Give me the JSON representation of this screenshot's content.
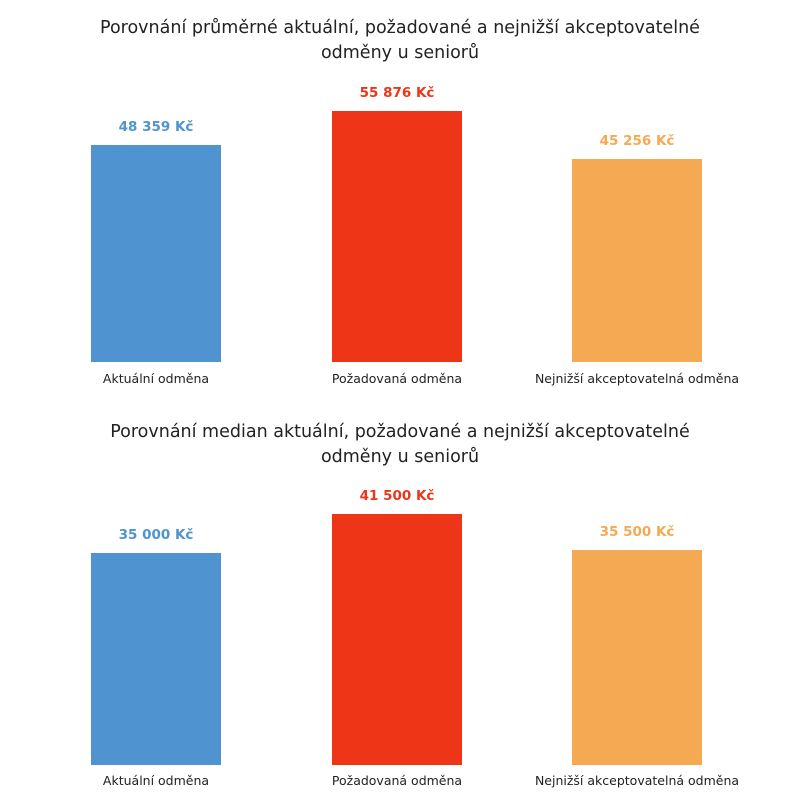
{
  "colors": {
    "aktualni": "#4f94d0",
    "pozadovana": "#ee3518",
    "nejnizsi": "#f5a953"
  },
  "chart_data": [
    {
      "type": "bar",
      "title": "Porovnání průměrné aktuální, požadované a nejnižší akceptovatelné odměny u seniorů",
      "title_lines": [
        "Porovnání průměrné aktuální, požadované a nejnižší akceptovatelné",
        "odměny u seniorů"
      ],
      "categories": [
        "Aktuální odměna",
        "Požadovaná odměna",
        "Nejnižší akceptovatelná odměna"
      ],
      "values": [
        48359,
        55876,
        45256
      ],
      "data_labels": [
        "48 359 Kč",
        "55 876 Kč",
        "45 256 Kč"
      ],
      "colors": [
        "#4f94d0",
        "#ee3518",
        "#f5a953"
      ],
      "xlabel": "",
      "ylabel": "",
      "ylim": [
        0,
        55876
      ],
      "grid": false,
      "legend": "none"
    },
    {
      "type": "bar",
      "title": "Porovnání median aktuální, požadované a nejnižší akceptovatelné odměny u seniorů",
      "title_lines": [
        "Porovnání median aktuální, požadované a nejnižší akceptovatelné",
        "odměny u seniorů"
      ],
      "categories": [
        "Aktuální odměna",
        "Požadovaná odměna",
        "Nejnižší akceptovatelná odměna"
      ],
      "values": [
        35000,
        41500,
        35500
      ],
      "data_labels": [
        "35 000 Kč",
        "41 500 Kč",
        "35 500 Kč"
      ],
      "colors": [
        "#4f94d0",
        "#ee3518",
        "#f5a953"
      ],
      "xlabel": "",
      "ylabel": "",
      "ylim": [
        0,
        41500
      ],
      "grid": false,
      "legend": "none"
    }
  ]
}
